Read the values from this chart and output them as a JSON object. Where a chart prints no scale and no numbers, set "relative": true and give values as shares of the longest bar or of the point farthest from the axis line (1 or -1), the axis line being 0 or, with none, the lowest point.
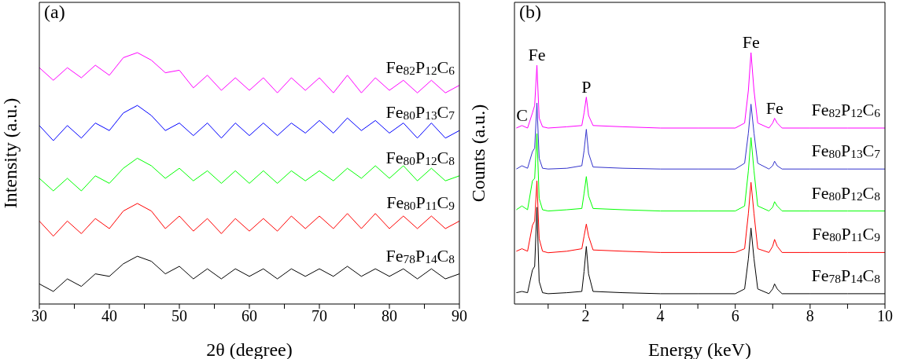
{
  "chart_data": [
    {
      "type": "line",
      "relative": true,
      "xlabel": "2θ (degree)",
      "ylabel": "Intensity (a.u.)",
      "annotations": [
        "(a)"
      ],
      "xlim": [
        30,
        90
      ],
      "xticks": [
        30,
        {
          "value": 35,
          "label": null
        },
        40,
        {
          "value": 45,
          "label": null
        },
        50,
        {
          "value": 55,
          "label": null
        },
        60,
        {
          "value": 65,
          "label": null
        },
        70,
        {
          "value": 75,
          "label": null
        },
        80,
        {
          "value": 85,
          "label": null
        },
        90
      ],
      "x": [
        30,
        32,
        34,
        36,
        38,
        40,
        42,
        44,
        46,
        48,
        50,
        52,
        54,
        56,
        58,
        60,
        62,
        64,
        66,
        68,
        70,
        72,
        74,
        76,
        78,
        80,
        82,
        84,
        86,
        88,
        90
      ],
      "series": [
        {
          "name": "Fe$_{82}$P$_{12}$C$_{6}$",
          "color": "#ff00ff",
          "values": [
            0.94,
            0.89,
            0.94,
            0.9,
            0.95,
            0.91,
            0.98,
            1.0,
            0.97,
            0.92,
            0.93,
            0.86,
            0.91,
            0.85,
            0.9,
            0.85,
            0.9,
            0.84,
            0.9,
            0.85,
            0.9,
            0.84,
            0.91,
            0.84,
            0.9,
            0.85,
            0.89,
            0.84,
            0.89,
            0.84,
            0.87
          ]
        },
        {
          "name": "Fe$_{80}$P$_{13}$C$_{7}$",
          "color": "#0000ff",
          "values": [
            0.71,
            0.65,
            0.71,
            0.66,
            0.72,
            0.69,
            0.76,
            0.79,
            0.75,
            0.69,
            0.72,
            0.67,
            0.72,
            0.66,
            0.72,
            0.67,
            0.72,
            0.67,
            0.72,
            0.68,
            0.73,
            0.68,
            0.74,
            0.69,
            0.73,
            0.68,
            0.72,
            0.66,
            0.72,
            0.66,
            0.69
          ]
        },
        {
          "name": "Fe$_{80}$P$_{12}$C$_{8}$",
          "color": "#00ff00",
          "values": [
            0.5,
            0.45,
            0.5,
            0.45,
            0.51,
            0.48,
            0.54,
            0.58,
            0.55,
            0.5,
            0.54,
            0.49,
            0.53,
            0.48,
            0.53,
            0.48,
            0.53,
            0.48,
            0.53,
            0.49,
            0.53,
            0.49,
            0.54,
            0.5,
            0.55,
            0.5,
            0.55,
            0.49,
            0.54,
            0.49,
            0.51
          ]
        },
        {
          "name": "Fe$_{80}$P$_{11}$C$_{9}$",
          "color": "#ff0000",
          "values": [
            0.33,
            0.27,
            0.33,
            0.28,
            0.34,
            0.3,
            0.37,
            0.4,
            0.37,
            0.3,
            0.35,
            0.29,
            0.34,
            0.28,
            0.34,
            0.29,
            0.34,
            0.29,
            0.35,
            0.3,
            0.35,
            0.3,
            0.36,
            0.3,
            0.36,
            0.3,
            0.35,
            0.3,
            0.35,
            0.3,
            0.33
          ]
        },
        {
          "name": "Fe$_{78}$P$_{14}$C$_{8}$",
          "color": "#000000",
          "values": [
            0.08,
            0.05,
            0.1,
            0.07,
            0.12,
            0.11,
            0.16,
            0.19,
            0.17,
            0.12,
            0.15,
            0.1,
            0.14,
            0.1,
            0.14,
            0.11,
            0.14,
            0.1,
            0.14,
            0.11,
            0.14,
            0.11,
            0.15,
            0.11,
            0.14,
            0.11,
            0.14,
            0.1,
            0.14,
            0.1,
            0.12
          ]
        }
      ]
    },
    {
      "type": "line",
      "relative": true,
      "xlabel": "Energy (keV)",
      "ylabel": "Counts (a.u.)",
      "xlim": [
        0.1,
        10
      ],
      "xticks": [
        {
          "value": 1,
          "label": null
        },
        2,
        {
          "value": 3,
          "label": null
        },
        4,
        {
          "value": 5,
          "label": null
        },
        6,
        {
          "value": 7,
          "label": null
        },
        8,
        {
          "value": 9,
          "label": null
        },
        10
      ],
      "annotations": [
        "(b)",
        {
          "text": "C",
          "x": 0.3,
          "y": 0.71
        },
        {
          "text": "Fe",
          "x": 0.7,
          "y": 0.95
        },
        {
          "text": "P",
          "x": 2.02,
          "y": 0.823
        },
        {
          "text": "Fe",
          "x": 6.42,
          "y": 1.0
        },
        {
          "text": "Fe",
          "x": 7.05,
          "y": 0.739
        }
      ],
      "x": [
        0.15,
        0.3,
        0.45,
        0.58,
        0.64,
        0.7,
        0.76,
        0.85,
        1.0,
        1.5,
        1.9,
        1.96,
        2.02,
        2.08,
        2.2,
        3,
        4,
        5,
        6,
        6.25,
        6.35,
        6.42,
        6.5,
        6.6,
        6.9,
        7.0,
        7.05,
        7.12,
        7.25,
        8,
        9,
        10
      ],
      "series": [
        {
          "name": "Fe$_{82}$P$_{12}$C$_{6}$",
          "color": "#ff00ff",
          "values": [
            0.7,
            0.71,
            0.7,
            0.76,
            0.79,
            0.95,
            0.74,
            0.705,
            0.7,
            0.705,
            0.71,
            0.76,
            0.823,
            0.75,
            0.71,
            0.705,
            0.7,
            0.7,
            0.7,
            0.72,
            0.85,
            1.0,
            0.85,
            0.72,
            0.7,
            0.72,
            0.739,
            0.72,
            0.7,
            0.7,
            0.7,
            0.7
          ]
        },
        {
          "name": "Fe$_{80}$P$_{13}$C$_{7}$",
          "color": "#3333cc",
          "values": [
            0.537,
            0.55,
            0.54,
            0.606,
            0.62,
            0.8,
            0.58,
            0.54,
            0.537,
            0.54,
            0.55,
            0.61,
            0.695,
            0.6,
            0.545,
            0.54,
            0.537,
            0.537,
            0.537,
            0.56,
            0.68,
            0.795,
            0.68,
            0.56,
            0.537,
            0.55,
            0.568,
            0.55,
            0.537,
            0.537,
            0.537,
            0.537
          ]
        },
        {
          "name": "Fe$_{80}$P$_{12}$C$_{8}$",
          "color": "#00ff00",
          "values": [
            0.375,
            0.39,
            0.375,
            0.49,
            0.5,
            0.678,
            0.42,
            0.375,
            0.37,
            0.375,
            0.38,
            0.44,
            0.507,
            0.43,
            0.38,
            0.375,
            0.37,
            0.37,
            0.37,
            0.39,
            0.53,
            0.662,
            0.53,
            0.39,
            0.37,
            0.385,
            0.407,
            0.39,
            0.37,
            0.37,
            0.37,
            0.37
          ]
        },
        {
          "name": "Fe$_{80}$P$_{11}$C$_{9}$",
          "color": "#ff0000",
          "values": [
            0.21,
            0.22,
            0.21,
            0.313,
            0.33,
            0.49,
            0.26,
            0.21,
            0.204,
            0.21,
            0.22,
            0.27,
            0.318,
            0.27,
            0.215,
            0.21,
            0.205,
            0.205,
            0.205,
            0.22,
            0.36,
            0.484,
            0.36,
            0.22,
            0.205,
            0.23,
            0.257,
            0.23,
            0.205,
            0.205,
            0.205,
            0.205
          ]
        },
        {
          "name": "Fe$_{78}$P$_{14}$C$_{8}$",
          "color": "#000000",
          "values": [
            0.045,
            0.05,
            0.045,
            0.135,
            0.15,
            0.385,
            0.09,
            0.045,
            0.041,
            0.045,
            0.05,
            0.13,
            0.229,
            0.12,
            0.05,
            0.045,
            0.041,
            0.041,
            0.041,
            0.06,
            0.18,
            0.302,
            0.18,
            0.06,
            0.041,
            0.06,
            0.08,
            0.06,
            0.041,
            0.041,
            0.041,
            0.041
          ]
        }
      ]
    }
  ]
}
